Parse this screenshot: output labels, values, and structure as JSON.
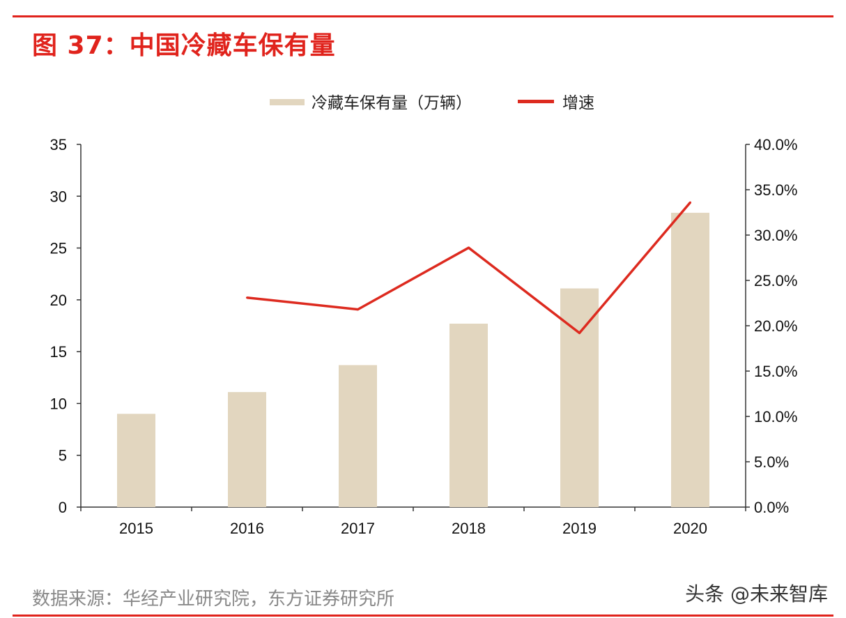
{
  "title": "图 37：中国冷藏车保有量",
  "source": "数据来源：华经产业研究院，东方证券研究所",
  "watermark": "头条 @未来智库",
  "colors": {
    "bar": "#e2d6bf",
    "line": "#dd2a1f",
    "accent": "#e0231c",
    "axis": "#333333"
  },
  "chart_data": {
    "type": "bar",
    "categories": [
      "2015",
      "2016",
      "2017",
      "2018",
      "2019",
      "2020"
    ],
    "series": [
      {
        "name": "冷藏车保有量（万辆）",
        "type": "bar",
        "axis": "left",
        "values": [
          9.0,
          11.1,
          13.7,
          17.7,
          21.1,
          28.4
        ]
      },
      {
        "name": "增速",
        "type": "line",
        "axis": "right",
        "values": [
          null,
          23.1,
          21.8,
          28.6,
          19.2,
          33.6
        ]
      }
    ],
    "ylim_left": [
      0,
      35
    ],
    "yticks_left": [
      "0",
      "5",
      "10",
      "15",
      "20",
      "25",
      "30",
      "35"
    ],
    "ylim_right": [
      0,
      40
    ],
    "yticks_right": [
      "0.0%",
      "5.0%",
      "10.0%",
      "15.0%",
      "20.0%",
      "25.0%",
      "30.0%",
      "35.0%",
      "40.0%"
    ],
    "legend_position": "top-center",
    "grid": false
  }
}
